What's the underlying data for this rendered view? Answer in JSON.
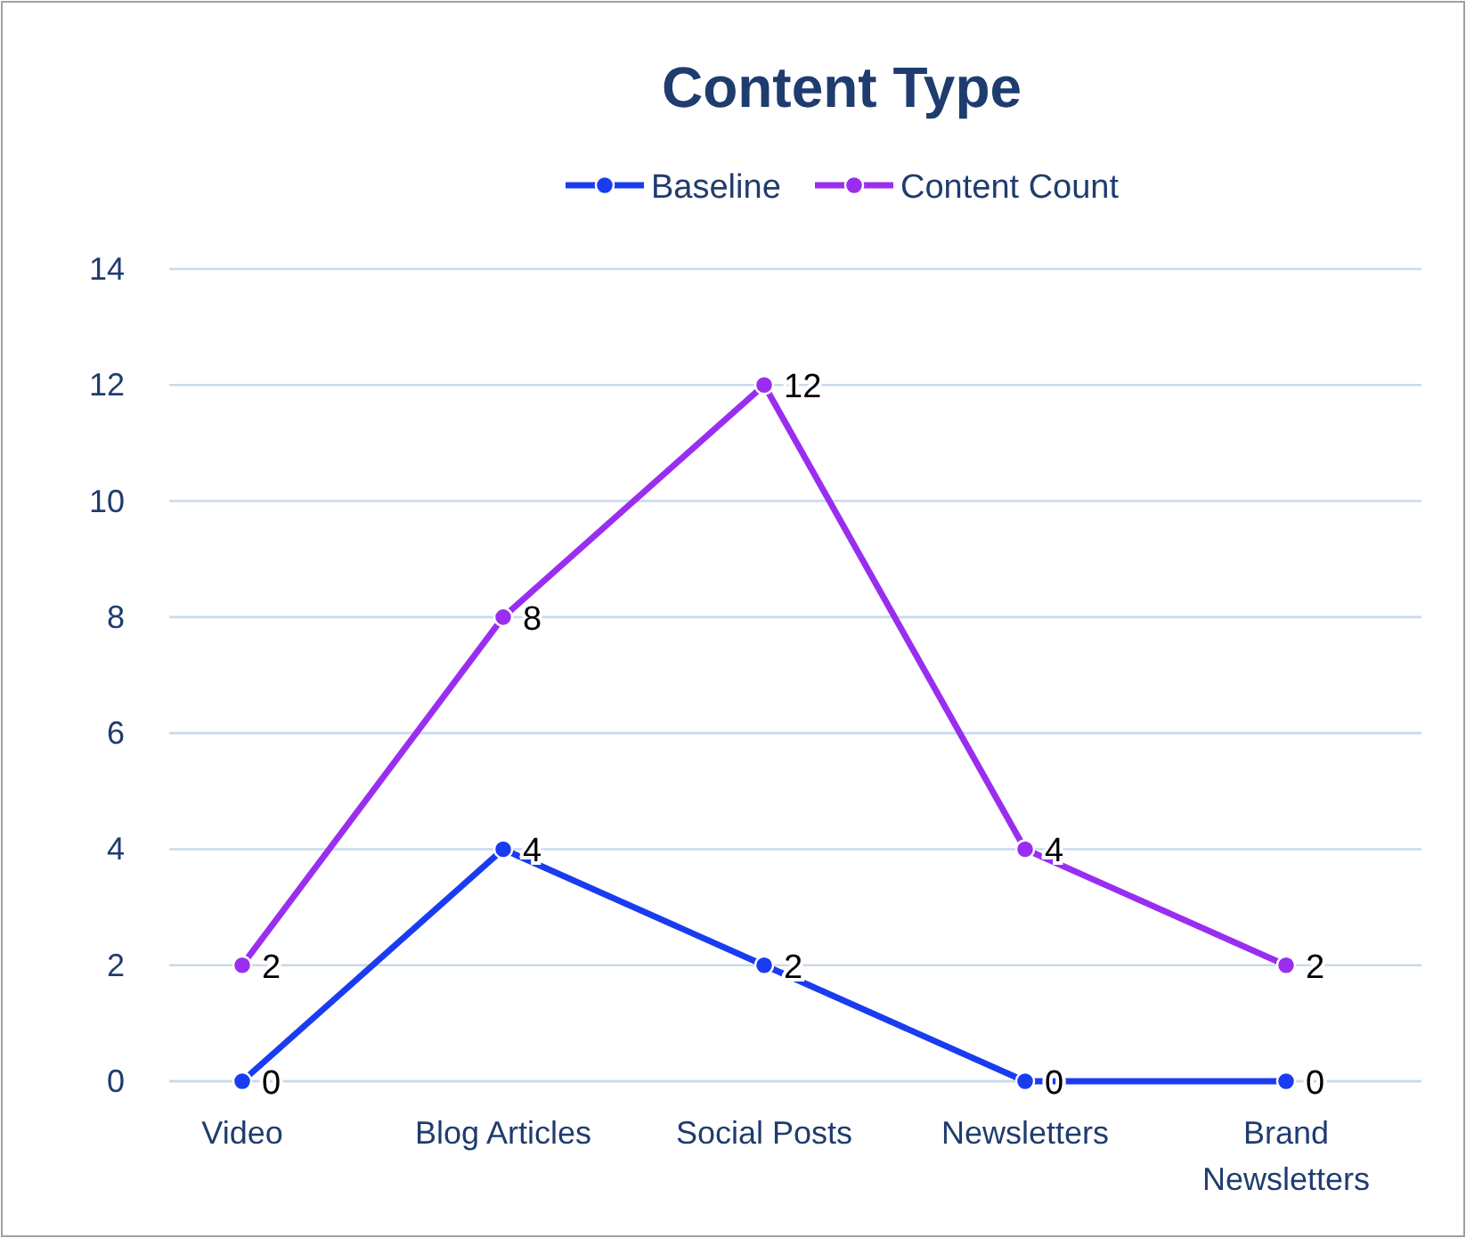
{
  "chart_data": {
    "type": "line",
    "title": "Content Type",
    "categories": [
      "Video",
      "Blog Articles",
      "Social Posts",
      "Newsletters",
      "Brand Newsletters"
    ],
    "series": [
      {
        "name": "Baseline",
        "color": "#1a3cf0",
        "values": [
          0,
          4,
          2,
          0,
          0
        ]
      },
      {
        "name": "Content Count",
        "color": "#9a2ef0",
        "values": [
          2,
          8,
          12,
          4,
          2
        ]
      }
    ],
    "ylim": [
      0,
      14
    ],
    "yticks": [
      0,
      2,
      4,
      6,
      8,
      10,
      12,
      14
    ],
    "grid": "y",
    "legend": "top",
    "marker": "circle",
    "line_style": "solid",
    "data_labels": true
  }
}
